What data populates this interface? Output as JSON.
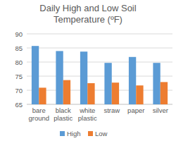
{
  "chart_data": {
    "type": "bar",
    "title": "Daily High and Low Soil Temperature (ºF)",
    "categories": [
      "bare ground",
      "black plastic",
      "white plastic",
      "straw",
      "paper",
      "silver"
    ],
    "series": [
      {
        "name": "High",
        "color": "#5b9bd5",
        "values": [
          85.7,
          83.9,
          83.7,
          79.7,
          81.8,
          79.7
        ]
      },
      {
        "name": "Low",
        "color": "#ed7d31",
        "values": [
          70.9,
          73.6,
          72.5,
          72.7,
          71.7,
          72.9
        ]
      }
    ],
    "ylim": [
      65,
      90
    ],
    "yticks": [
      65,
      70,
      75,
      80,
      85,
      90
    ],
    "grid": true,
    "legend": "bottom"
  }
}
